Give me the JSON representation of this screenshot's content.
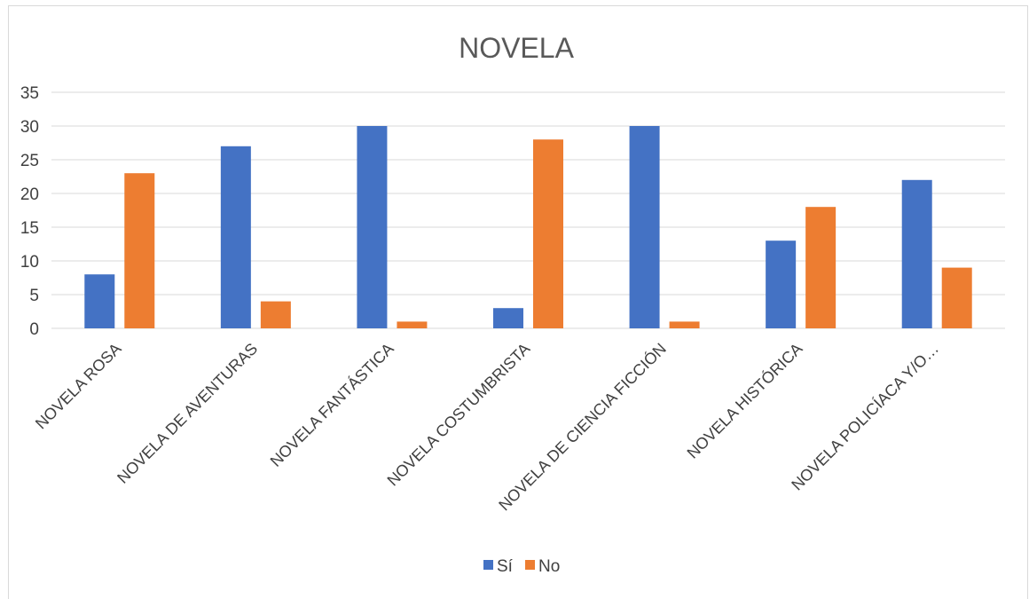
{
  "chart_data": {
    "type": "bar",
    "title": "NOVELA",
    "xlabel": "",
    "ylabel": "",
    "ylim": [
      0,
      35
    ],
    "yticks": [
      0,
      5,
      10,
      15,
      20,
      25,
      30,
      35
    ],
    "grid": true,
    "legend_position": "bottom",
    "categories": [
      "NOVELA ROSA",
      "NOVELA DE AVENTURAS",
      "NOVELA FANTÁSTICA",
      "NOVELA COSTUMBRISTA",
      "NOVELA DE CIENCIA FICCIÓN",
      "NOVELA HISTÓRICA",
      "NOVELA POLICÍACA Y/O…"
    ],
    "series": [
      {
        "name": "Sí",
        "color": "#4472c4",
        "values": [
          8,
          27,
          30,
          3,
          30,
          13,
          22
        ]
      },
      {
        "name": "No",
        "color": "#ed7d31",
        "values": [
          23,
          4,
          1,
          28,
          1,
          18,
          9
        ]
      }
    ]
  }
}
